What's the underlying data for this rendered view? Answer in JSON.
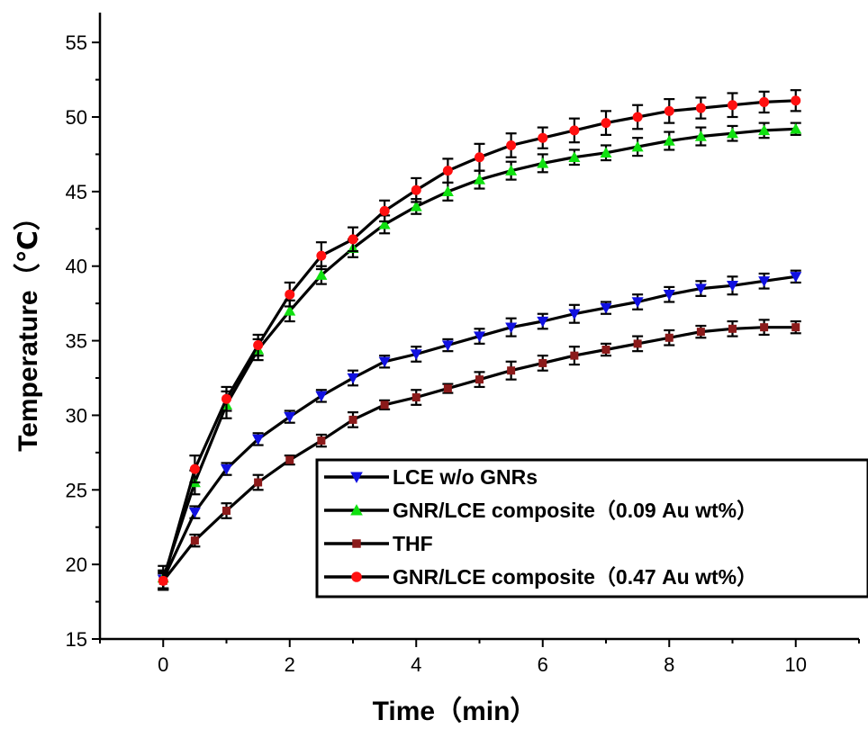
{
  "chart_data": {
    "type": "line",
    "title": "",
    "xlabel": "Time（min）",
    "ylabel": "Temperature（℃）",
    "xlim": [
      -1,
      11
    ],
    "ylim": [
      15,
      57
    ],
    "xticks": [
      0,
      2,
      4,
      6,
      8,
      10
    ],
    "yticks": [
      15,
      20,
      25,
      30,
      35,
      40,
      45,
      50,
      55
    ],
    "x": [
      0,
      0.5,
      1,
      1.5,
      2,
      2.5,
      3,
      3.5,
      4,
      4.5,
      5,
      5.5,
      6,
      6.5,
      7,
      7.5,
      8,
      8.5,
      9,
      9.5,
      10
    ],
    "legend_position": "bottom-right",
    "grid": false,
    "series": [
      {
        "name": "LCE w/o GNRs",
        "marker": "triangle-down",
        "color": "#1010e0",
        "values": [
          19.0,
          23.5,
          26.4,
          28.4,
          29.9,
          31.3,
          32.5,
          33.6,
          34.1,
          34.7,
          35.3,
          35.9,
          36.3,
          36.8,
          37.2,
          37.6,
          38.1,
          38.5,
          38.7,
          39.0,
          39.3
        ],
        "errors": [
          0.6,
          0.4,
          0.4,
          0.4,
          0.4,
          0.4,
          0.5,
          0.4,
          0.5,
          0.4,
          0.5,
          0.6,
          0.5,
          0.6,
          0.4,
          0.5,
          0.5,
          0.5,
          0.6,
          0.5,
          0.4
        ]
      },
      {
        "name": "GNR/LCE composite（0.09 Au wt%）",
        "marker": "triangle-up",
        "color": "#10e010",
        "values": [
          19.1,
          25.5,
          30.7,
          34.4,
          37.0,
          39.4,
          41.2,
          42.8,
          44.0,
          45.0,
          45.8,
          46.4,
          46.9,
          47.3,
          47.6,
          48.0,
          48.4,
          48.7,
          48.9,
          49.1,
          49.2
        ],
        "errors": [
          0.8,
          0.8,
          0.9,
          0.7,
          0.7,
          0.6,
          0.6,
          0.6,
          0.5,
          0.6,
          0.6,
          0.6,
          0.6,
          0.5,
          0.5,
          0.6,
          0.6,
          0.6,
          0.5,
          0.5,
          0.4
        ]
      },
      {
        "name": "THF",
        "marker": "square",
        "color": "#8b1a1a",
        "values": [
          18.9,
          21.6,
          23.6,
          25.5,
          27.0,
          28.3,
          29.7,
          30.7,
          31.2,
          31.8,
          32.4,
          33.0,
          33.5,
          34.0,
          34.4,
          34.8,
          35.2,
          35.6,
          35.8,
          35.9,
          35.9
        ],
        "errors": [
          0.5,
          0.4,
          0.5,
          0.5,
          0.3,
          0.4,
          0.5,
          0.3,
          0.5,
          0.3,
          0.5,
          0.6,
          0.5,
          0.6,
          0.4,
          0.5,
          0.5,
          0.4,
          0.5,
          0.5,
          0.4
        ]
      },
      {
        "name": "GNR/LCE composite（0.47 Au wt%）",
        "marker": "circle",
        "color": "#ff1010",
        "values": [
          18.9,
          26.4,
          31.1,
          34.7,
          38.1,
          40.7,
          41.8,
          43.7,
          45.1,
          46.4,
          47.3,
          48.1,
          48.6,
          49.1,
          49.6,
          50.0,
          50.4,
          50.6,
          50.8,
          51.0,
          51.1
        ],
        "errors": [
          0.6,
          0.9,
          0.8,
          0.7,
          0.8,
          0.9,
          0.8,
          0.7,
          0.8,
          0.8,
          0.9,
          0.8,
          0.7,
          0.8,
          0.8,
          0.8,
          0.8,
          0.7,
          0.8,
          0.7,
          0.7
        ]
      }
    ]
  }
}
